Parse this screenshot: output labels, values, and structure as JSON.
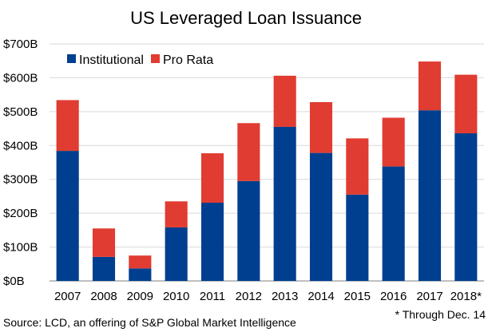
{
  "chart_data": {
    "type": "bar",
    "stacked": true,
    "title": "US Leveraged Loan Issuance",
    "categories": [
      "2007",
      "2008",
      "2009",
      "2010",
      "2011",
      "2012",
      "2013",
      "2014",
      "2015",
      "2016",
      "2017",
      "2018*"
    ],
    "series": [
      {
        "name": "Institutional",
        "color": "#003f8f",
        "values": [
          384,
          71,
          37,
          158,
          231,
          295,
          455,
          378,
          255,
          338,
          504,
          436
        ]
      },
      {
        "name": "Pro Rata",
        "color": "#e03c31",
        "values": [
          150,
          84,
          38,
          77,
          146,
          171,
          151,
          150,
          166,
          144,
          144,
          173
        ]
      }
    ],
    "ylim": [
      0,
      700
    ],
    "yticks": [
      0,
      100,
      200,
      300,
      400,
      500,
      600,
      700
    ],
    "ytick_labels": [
      "$0B",
      "$100B",
      "$200B",
      "$300B",
      "$400B",
      "$500B",
      "$600B",
      "$700B"
    ],
    "grid": true,
    "legend_position": "top-left"
  },
  "footnotes": {
    "source": "Source: LCD, an offering of S&P Global Market Intelligence",
    "note": "* Through Dec. 14"
  }
}
